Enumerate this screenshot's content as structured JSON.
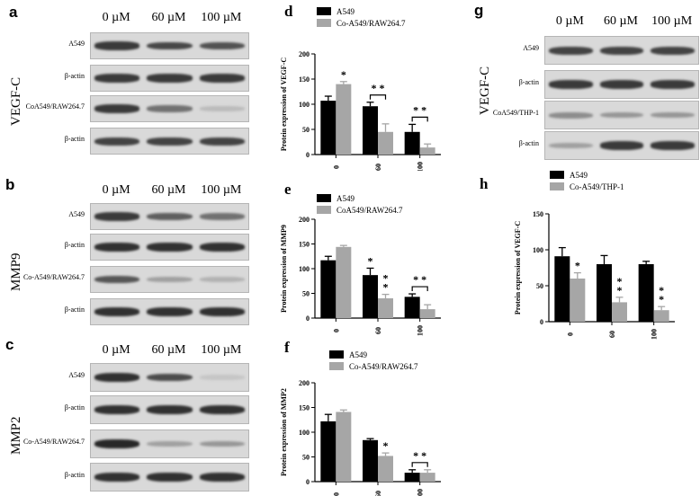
{
  "blots": [
    {
      "letter": "a",
      "group": "VEGF-C",
      "concentrations": [
        "0 µM",
        "60 µM",
        "100 µM"
      ],
      "rows": [
        {
          "label": "A549",
          "bands": [
            0.85,
            0.78,
            0.72
          ]
        },
        {
          "label": "β-actin",
          "bands": [
            0.85,
            0.85,
            0.85
          ]
        },
        {
          "label": "CoA549/RAW264.7",
          "bands": [
            0.85,
            0.55,
            0.15
          ]
        },
        {
          "label": "β-actin",
          "bands": [
            0.8,
            0.8,
            0.8
          ]
        }
      ]
    },
    {
      "letter": "b",
      "group": "MMP9",
      "concentrations": [
        "0 µM",
        "60 µM",
        "100 µM"
      ],
      "rows": [
        {
          "label": "A549",
          "bands": [
            0.85,
            0.65,
            0.55
          ]
        },
        {
          "label": "β-actin",
          "bands": [
            0.9,
            0.9,
            0.9
          ]
        },
        {
          "label": "Co-A549/RAW264.7",
          "bands": [
            0.7,
            0.3,
            0.2
          ]
        },
        {
          "label": "β-actin",
          "bands": [
            0.9,
            0.9,
            0.9
          ]
        }
      ]
    },
    {
      "letter": "c",
      "group": "MMP2",
      "concentrations": [
        "0 µM",
        "60 µM",
        "100 µM"
      ],
      "rows": [
        {
          "label": "A549",
          "bands": [
            0.9,
            0.75,
            0.1
          ]
        },
        {
          "label": "β-actin",
          "bands": [
            0.9,
            0.9,
            0.9
          ]
        },
        {
          "label": "Co-A549/RAW264.7",
          "bands": [
            0.95,
            0.3,
            0.35
          ]
        },
        {
          "label": "β-actin",
          "bands": [
            0.9,
            0.9,
            0.9
          ]
        }
      ]
    },
    {
      "letter": "g",
      "group": "VEGF-C",
      "concentrations": [
        "0 µM",
        "60 µM",
        "100 µM"
      ],
      "rows": [
        {
          "label": "A549",
          "bands": [
            0.8,
            0.8,
            0.8
          ]
        },
        {
          "label": "β-actin",
          "bands": [
            0.85,
            0.85,
            0.85
          ]
        },
        {
          "label": "CoA549/THP-1",
          "bands": [
            0.4,
            0.35,
            0.35
          ]
        },
        {
          "label": "β-actin",
          "bands": [
            0.3,
            0.85,
            0.85
          ]
        }
      ]
    }
  ],
  "chart_data": [
    {
      "letter": "d",
      "type": "bar",
      "ylabel": "Protein expression of VEGF-C",
      "ylim": [
        0,
        200
      ],
      "yticks": [
        0,
        50,
        100,
        150,
        200
      ],
      "categories": [
        "0",
        "60",
        "100"
      ],
      "series": [
        {
          "name": "A549",
          "color": "#000000",
          "values": [
            107,
            96,
            45
          ],
          "errors": [
            9,
            8,
            15
          ]
        },
        {
          "name": "Co-A549/RAW264.7",
          "color": "#a6a6a6",
          "values": [
            140,
            45,
            14
          ],
          "errors": [
            5,
            16,
            7
          ]
        }
      ],
      "annotations": [
        {
          "category": 0,
          "series": 1,
          "text": "*"
        },
        {
          "category": 1,
          "text": "* *",
          "bracket": true
        },
        {
          "category": 2,
          "text": "* *",
          "bracket": true
        }
      ]
    },
    {
      "letter": "e",
      "type": "bar",
      "ylabel": "Protein expression of MMP9",
      "ylim": [
        0,
        200
      ],
      "yticks": [
        0,
        50,
        100,
        150,
        200
      ],
      "categories": [
        "0",
        "60",
        "100"
      ],
      "series": [
        {
          "name": "A549",
          "color": "#000000",
          "values": [
            117,
            87,
            43
          ],
          "errors": [
            8,
            14,
            6
          ]
        },
        {
          "name": "CoA549/RAW264.7",
          "color": "#a6a6a6",
          "values": [
            144,
            40,
            18
          ],
          "errors": [
            3,
            8,
            9
          ]
        }
      ],
      "annotations": [
        {
          "category": 1,
          "series": 0,
          "text": "*"
        },
        {
          "category": 1,
          "series": 1,
          "text": "*",
          "stacked": "*"
        },
        {
          "category": 2,
          "text": "* *",
          "bracket": true
        }
      ]
    },
    {
      "letter": "f",
      "type": "bar",
      "ylabel": "Protein expression of MMP2",
      "ylim": [
        0,
        200
      ],
      "yticks": [
        0,
        50,
        100,
        150,
        200
      ],
      "categories": [
        "0",
        "60",
        "100"
      ],
      "series": [
        {
          "name": "A549",
          "color": "#000000",
          "values": [
            122,
            84,
            18
          ],
          "errors": [
            14,
            3,
            6
          ]
        },
        {
          "name": "Co-A549/RAW264.7",
          "color": "#a6a6a6",
          "values": [
            141,
            52,
            18
          ],
          "errors": [
            4,
            6,
            6
          ]
        }
      ],
      "annotations": [
        {
          "category": 1,
          "series": 1,
          "text": "*"
        },
        {
          "category": 2,
          "text": "* *",
          "bracket": true
        }
      ]
    },
    {
      "letter": "h",
      "type": "bar",
      "ylabel": "Protein expression of VEGF-C",
      "ylim": [
        0,
        150
      ],
      "yticks": [
        0,
        50,
        100,
        150
      ],
      "categories": [
        "0",
        "60",
        "100"
      ],
      "series": [
        {
          "name": "A549",
          "color": "#000000",
          "values": [
            91,
            80,
            80
          ],
          "errors": [
            12,
            12,
            4
          ]
        },
        {
          "name": "Co-A549/THP-1",
          "color": "#a6a6a6",
          "values": [
            60,
            27,
            16
          ],
          "errors": [
            8,
            7,
            5
          ]
        }
      ],
      "annotations": [
        {
          "category": 0,
          "series": 1,
          "text": "*"
        },
        {
          "category": 1,
          "series": 1,
          "text": "*",
          "stacked": "*"
        },
        {
          "category": 2,
          "series": 1,
          "text": "*",
          "stacked": "*"
        }
      ]
    }
  ]
}
